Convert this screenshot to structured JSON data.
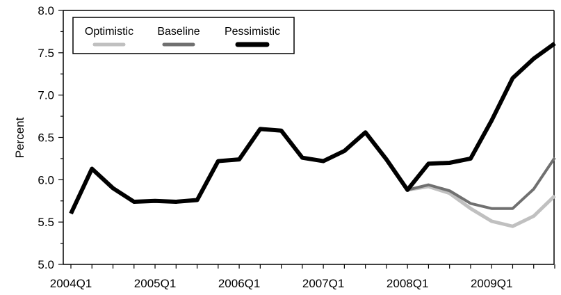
{
  "chart_data": {
    "type": "line",
    "ylabel": "Percent",
    "xlabel": "",
    "title": "",
    "ylim": [
      5.0,
      8.0
    ],
    "y_ticks": [
      "5.0",
      "5.5",
      "6.0",
      "6.5",
      "7.0",
      "7.5",
      "8.0"
    ],
    "x_tick_labels": [
      {
        "index": 0,
        "label": "2004Q1"
      },
      {
        "index": 4,
        "label": "2005Q1"
      },
      {
        "index": 8,
        "label": "2006Q1"
      },
      {
        "index": 12,
        "label": "2007Q1"
      },
      {
        "index": 16,
        "label": "2008Q1"
      },
      {
        "index": 20,
        "label": "2009Q1"
      }
    ],
    "quarters": [
      "2004Q1",
      "2004Q2",
      "2004Q3",
      "2004Q4",
      "2005Q1",
      "2005Q2",
      "2005Q3",
      "2005Q4",
      "2006Q1",
      "2006Q2",
      "2006Q3",
      "2006Q4",
      "2007Q1",
      "2007Q2",
      "2007Q3",
      "2007Q4",
      "2008Q1",
      "2008Q2",
      "2008Q3",
      "2008Q4",
      "2009Q1",
      "2009Q2",
      "2009Q3",
      "2009Q4"
    ],
    "legend_position": "top-left",
    "grid": false,
    "series": [
      {
        "name": "Optimistic",
        "color": "#c0c0c0",
        "start_index": 16,
        "values": [
          5.88,
          5.92,
          5.84,
          5.66,
          5.51,
          5.45,
          5.57,
          5.81
        ]
      },
      {
        "name": "Baseline",
        "color": "#707070",
        "start_index": 16,
        "values": [
          5.88,
          5.94,
          5.87,
          5.72,
          5.66,
          5.66,
          5.89,
          6.26
        ]
      },
      {
        "name": "Pessimistic",
        "color": "#000000",
        "start_index": 0,
        "values": [
          5.6,
          6.13,
          5.9,
          5.74,
          5.75,
          5.74,
          5.76,
          6.22,
          6.24,
          6.6,
          6.58,
          6.26,
          6.22,
          6.34,
          6.56,
          6.24,
          5.88,
          6.19,
          6.2,
          6.25,
          6.7,
          7.2,
          7.43,
          7.61
        ]
      }
    ]
  }
}
